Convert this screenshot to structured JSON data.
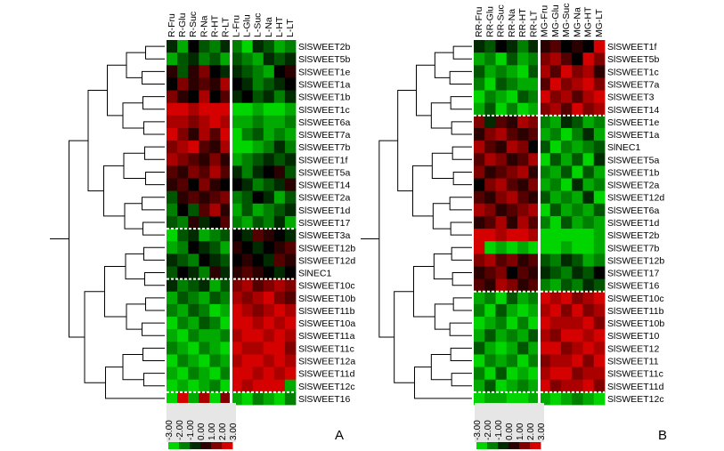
{
  "figure": {
    "panel_a_letter": "A",
    "panel_b_letter": "B"
  },
  "chart_data": [
    {
      "type": "heatmap",
      "panel": "A",
      "columns": [
        "R-Fru",
        "R-Glu",
        "R-Suc",
        "R-Na",
        "R-HT",
        "R-LT",
        "L-Fru",
        "L-Glu",
        "L-Suc",
        "L-Na",
        "L-HT",
        "L-LT"
      ],
      "rows": [
        "SlSWEET2b",
        "SlSWEET5b",
        "SlSWEET1e",
        "SlSWEET1a",
        "SlSWEET1b",
        "SlSWEET1c",
        "SlSWEET6a",
        "SlSWEET7a",
        "SlSWEET7b",
        "SlSWEET1f",
        "SlSWEET5a",
        "SlSWEET14",
        "SlSWEET2a",
        "SlSWEET1d",
        "SlSWEET17",
        "SlSWEET3a",
        "SlSWEET12b",
        "SlSWEET12d",
        "SlNEC1",
        "SlSWEET10c",
        "SlSWEET10b",
        "SlSWEET11b",
        "SlSWEET10a",
        "SlSWEET11a",
        "SlSWEET11c",
        "SlSWEET12a",
        "SlSWEET11d",
        "SlSWEET12c",
        "SlSWEET16"
      ],
      "values": [
        [
          -0.5,
          -2.0,
          0.0,
          -1.0,
          -1.5,
          -0.5,
          -1.5,
          -2.5,
          -0.5,
          -1.0,
          -2.0,
          -1.5
        ],
        [
          -2.0,
          -1.0,
          -0.5,
          -1.5,
          -1.0,
          -2.0,
          -1.0,
          -1.5,
          -2.0,
          -0.5,
          -1.0,
          -0.5
        ],
        [
          0.5,
          -1.0,
          0.5,
          1.5,
          0.0,
          -0.5,
          -0.5,
          -1.0,
          -1.5,
          -2.0,
          0.0,
          0.5
        ],
        [
          0.0,
          1.5,
          0.5,
          1.0,
          0.5,
          2.0,
          0.0,
          -0.5,
          -1.5,
          -1.0,
          -0.5,
          0.0
        ],
        [
          1.5,
          0.5,
          0.0,
          2.0,
          0.0,
          1.0,
          -0.5,
          0.0,
          -1.0,
          -0.5,
          -1.5,
          -0.5
        ],
        [
          2.5,
          2.5,
          2.0,
          2.5,
          2.5,
          2.5,
          -2.5,
          -2.5,
          -2.0,
          -2.5,
          -2.5,
          -2.0
        ],
        [
          2.0,
          2.0,
          1.5,
          2.0,
          2.5,
          2.0,
          -2.0,
          -2.0,
          -1.5,
          -2.0,
          -2.0,
          -1.5
        ],
        [
          2.5,
          1.5,
          0.5,
          2.0,
          1.0,
          2.5,
          -2.5,
          -1.5,
          -1.0,
          -2.0,
          -1.5,
          -2.0
        ],
        [
          1.5,
          2.0,
          2.5,
          1.0,
          0.5,
          2.0,
          -2.5,
          -2.5,
          -2.0,
          -1.5,
          -0.5,
          -1.5
        ],
        [
          2.0,
          1.5,
          1.0,
          0.5,
          1.5,
          0.5,
          -2.0,
          -1.5,
          -1.0,
          -0.5,
          -1.0,
          -0.5
        ],
        [
          1.0,
          0.5,
          1.5,
          1.0,
          2.0,
          1.0,
          -0.5,
          -1.5,
          -0.5,
          0.0,
          0.5,
          -1.0
        ],
        [
          0.5,
          1.0,
          0.0,
          1.5,
          0.5,
          0.0,
          0.0,
          -0.5,
          -1.5,
          -1.0,
          -0.5,
          0.5
        ],
        [
          -1.0,
          0.5,
          1.0,
          0.5,
          1.0,
          1.5,
          -1.5,
          -1.0,
          0.0,
          -0.5,
          -2.0,
          -1.0
        ],
        [
          -1.5,
          0.0,
          -1.0,
          1.0,
          2.0,
          0.5,
          -2.0,
          -1.0,
          -2.0,
          -1.5,
          -1.0,
          -0.5
        ],
        [
          -1.0,
          -1.5,
          0.5,
          -0.5,
          0.0,
          1.0,
          -1.5,
          -2.0,
          -1.0,
          -1.5,
          -0.5,
          -2.0
        ],
        [
          -2.5,
          -1.0,
          -0.5,
          -2.0,
          -1.5,
          -1.0,
          0.0,
          -0.5,
          1.0,
          0.5,
          0.0,
          -0.5
        ],
        [
          -2.0,
          -1.5,
          0.0,
          -0.5,
          -1.0,
          -2.0,
          0.5,
          0.0,
          -0.5,
          0.0,
          0.5,
          1.0
        ],
        [
          -0.5,
          -1.0,
          -1.5,
          0.0,
          -0.5,
          -1.0,
          0.0,
          0.5,
          0.0,
          -0.5,
          1.0,
          0.5
        ],
        [
          -1.0,
          0.0,
          -0.5,
          -1.5,
          0.5,
          -0.5,
          0.5,
          1.0,
          0.5,
          0.0,
          -0.5,
          0.0
        ],
        [
          -0.5,
          -1.5,
          -1.0,
          -0.5,
          -2.0,
          -1.0,
          1.5,
          2.0,
          1.0,
          1.5,
          2.0,
          1.5
        ],
        [
          -2.0,
          -1.0,
          -1.5,
          -2.0,
          -1.0,
          -1.5,
          2.0,
          1.5,
          2.0,
          2.5,
          1.5,
          1.0
        ],
        [
          -1.5,
          -2.0,
          -1.0,
          -1.5,
          -2.5,
          -2.0,
          2.5,
          2.0,
          1.5,
          2.0,
          2.5,
          2.0
        ],
        [
          -2.5,
          -1.5,
          -2.0,
          -1.0,
          -1.5,
          -2.5,
          2.5,
          2.5,
          2.0,
          2.5,
          2.0,
          2.5
        ],
        [
          -2.0,
          -2.5,
          -1.5,
          -2.0,
          -2.0,
          -1.5,
          2.0,
          2.5,
          2.5,
          2.0,
          2.5,
          2.0
        ],
        [
          -1.5,
          -2.0,
          -2.5,
          -1.5,
          -2.0,
          -2.5,
          2.5,
          2.0,
          2.0,
          2.5,
          2.5,
          1.5
        ],
        [
          -2.5,
          -1.5,
          -2.0,
          -2.5,
          -1.5,
          -2.0,
          2.0,
          2.5,
          2.5,
          2.0,
          2.5,
          2.0
        ],
        [
          -2.0,
          -2.5,
          -1.5,
          -2.0,
          -2.5,
          -1.5,
          2.5,
          2.5,
          2.0,
          2.5,
          2.0,
          2.5
        ],
        [
          -2.5,
          -2.0,
          -2.5,
          -2.0,
          -1.5,
          -2.5,
          2.5,
          2.0,
          2.5,
          2.5,
          2.5,
          -2.0
        ],
        [
          -2.5,
          2.5,
          -2.0,
          2.0,
          -2.5,
          1.5,
          -2.0,
          -2.5,
          -1.5,
          -2.0,
          -2.5,
          -1.5
        ]
      ],
      "vmin": -3.0,
      "vmax": 3.0,
      "colors": {
        "low": "#00ff00",
        "mid": "#000000",
        "high": "#ff0000"
      },
      "separator_after_rows": [
        15,
        19,
        28
      ],
      "separator_after_columns": [
        6
      ],
      "legend_ticks": [
        "-3.00",
        "-2.00",
        "-1.00",
        "0.00",
        "1.00",
        "2.00",
        "3.00"
      ]
    },
    {
      "type": "heatmap",
      "panel": "B",
      "columns": [
        "RR-Fru",
        "RR-Glu",
        "RR-Suc",
        "RR-Na",
        "RR-HT",
        "RR-LT",
        "MG-Fru",
        "MG-Glu",
        "MG-Suc",
        "MG-Na",
        "MG-HT",
        "MG-LT"
      ],
      "rows": [
        "SlSWEET1f",
        "SlSWEET5b",
        "SlSWEET1c",
        "SlSWEET7a",
        "SlSWEET3",
        "SlSWEET14",
        "SlSWEET1e",
        "SlSWEET1a",
        "SlNEC1",
        "SlSWEET5a",
        "SlSWEET1b",
        "SlSWEET2a",
        "SlSWEET12d",
        "SlSWEET6a",
        "SlSWEET1d",
        "SlSWEET2b",
        "SlSWEET7b",
        "SlSWEET12b",
        "SlSWEET17",
        "SlSWEET16",
        "SlSWEET10c",
        "SlSWEET11b",
        "SlSWEET10b",
        "SlSWEET10",
        "SlSWEET12",
        "SlSWEET11",
        "SlSWEET11c",
        "SlSWEET11d",
        "SlSWEET12c"
      ],
      "values": [
        [
          -0.5,
          -1.0,
          0.0,
          -0.5,
          -1.5,
          -0.5,
          0.5,
          1.0,
          0.0,
          0.5,
          0.0,
          2.5
        ],
        [
          -2.0,
          -1.5,
          -2.5,
          -1.0,
          -2.0,
          -1.5,
          1.5,
          2.0,
          1.0,
          0.0,
          2.5,
          1.5
        ],
        [
          -1.0,
          -2.0,
          -1.5,
          -2.0,
          -2.5,
          -1.0,
          2.0,
          1.0,
          2.5,
          1.5,
          2.0,
          0.5
        ],
        [
          -1.5,
          -2.5,
          -1.0,
          -1.5,
          -2.0,
          -2.0,
          1.0,
          2.5,
          1.5,
          2.0,
          2.5,
          1.5
        ],
        [
          -2.5,
          -1.5,
          -2.0,
          -2.5,
          -1.0,
          -1.5,
          2.5,
          1.5,
          2.0,
          1.0,
          2.0,
          2.5
        ],
        [
          -2.0,
          -1.0,
          -2.5,
          -1.5,
          -2.5,
          -2.0,
          1.5,
          2.0,
          1.0,
          2.5,
          1.5,
          2.0
        ],
        [
          1.5,
          -0.5,
          1.0,
          0.5,
          2.0,
          1.5,
          -1.5,
          -2.0,
          -0.5,
          -1.0,
          -2.0,
          -1.5
        ],
        [
          0.5,
          1.5,
          2.0,
          1.0,
          0.5,
          1.0,
          -2.0,
          -1.5,
          -2.5,
          -1.5,
          -0.5,
          -2.0
        ],
        [
          2.0,
          1.0,
          0.5,
          2.0,
          1.5,
          0.0,
          -1.0,
          -2.5,
          -1.5,
          -2.0,
          -1.5,
          -1.0
        ],
        [
          1.0,
          2.0,
          1.5,
          0.5,
          1.0,
          2.0,
          -2.5,
          -1.0,
          -2.0,
          -1.0,
          -2.5,
          -0.5
        ],
        [
          1.5,
          0.5,
          1.0,
          1.5,
          2.0,
          0.5,
          -1.5,
          -2.0,
          -1.0,
          -2.5,
          -1.0,
          -2.0
        ],
        [
          0.0,
          1.5,
          2.0,
          1.0,
          0.5,
          1.5,
          -2.0,
          -1.5,
          -2.5,
          -0.5,
          -2.0,
          -1.5
        ],
        [
          1.0,
          0.5,
          1.5,
          2.0,
          1.0,
          0.5,
          -1.0,
          -2.0,
          -1.5,
          -2.0,
          -0.5,
          -2.5
        ],
        [
          2.0,
          1.5,
          0.5,
          1.0,
          1.5,
          2.0,
          -2.5,
          -1.0,
          -2.0,
          -1.5,
          -2.0,
          -1.0
        ],
        [
          0.5,
          1.0,
          2.0,
          0.5,
          2.0,
          1.0,
          -1.5,
          -2.5,
          -1.0,
          -2.0,
          -1.5,
          -2.0
        ],
        [
          2.5,
          2.5,
          2.0,
          2.5,
          2.5,
          2.0,
          -2.5,
          -2.5,
          -2.5,
          -2.5,
          -2.5,
          -2.0
        ],
        [
          2.5,
          -2.5,
          -2.0,
          -2.5,
          -2.0,
          -2.5,
          -2.5,
          -2.5,
          -2.0,
          -2.5,
          -2.5,
          -2.0
        ],
        [
          1.5,
          2.0,
          1.0,
          1.5,
          0.5,
          1.0,
          -1.0,
          -1.5,
          -0.5,
          -1.0,
          -2.0,
          -1.5
        ],
        [
          0.5,
          1.0,
          1.5,
          0.0,
          1.0,
          0.5,
          -0.5,
          -1.0,
          -1.5,
          -0.5,
          -1.0,
          0.0
        ],
        [
          1.0,
          0.5,
          2.0,
          1.5,
          0.5,
          1.0,
          -1.5,
          -2.0,
          -1.0,
          -1.5,
          -0.5,
          -1.0
        ],
        [
          -2.0,
          -1.5,
          -2.5,
          -1.0,
          -2.0,
          -1.5,
          2.5,
          2.0,
          2.5,
          1.5,
          2.0,
          2.5
        ],
        [
          -1.5,
          -2.5,
          -1.0,
          -2.0,
          -2.5,
          -2.0,
          2.0,
          2.5,
          1.5,
          2.5,
          1.5,
          2.0
        ],
        [
          -2.5,
          -2.0,
          -1.5,
          -2.5,
          -1.5,
          -2.5,
          2.5,
          2.0,
          2.0,
          2.0,
          2.5,
          1.5
        ],
        [
          -2.0,
          -1.0,
          -2.0,
          -1.5,
          -2.0,
          -1.0,
          2.0,
          1.5,
          2.5,
          2.5,
          2.0,
          2.5
        ],
        [
          -1.0,
          -2.0,
          -2.5,
          -2.0,
          -1.0,
          -2.0,
          2.5,
          2.5,
          1.5,
          2.0,
          2.5,
          2.0
        ],
        [
          -2.5,
          -1.5,
          -2.0,
          -1.5,
          -2.5,
          -1.5,
          1.5,
          2.0,
          2.0,
          2.5,
          1.5,
          2.5
        ],
        [
          -1.5,
          -2.5,
          -1.0,
          -2.5,
          -2.0,
          -2.5,
          2.0,
          2.5,
          2.5,
          1.5,
          2.0,
          2.0
        ],
        [
          -2.0,
          -1.0,
          -2.5,
          -2.0,
          -1.5,
          -2.0,
          2.5,
          1.5,
          2.0,
          2.0,
          2.5,
          1.5
        ],
        [
          -2.5,
          -2.0,
          -2.0,
          -2.5,
          -2.5,
          -2.0,
          -2.0,
          -2.5,
          -2.0,
          -1.5,
          -2.0,
          -2.5
        ]
      ],
      "vmin": -3.0,
      "vmax": 3.0,
      "colors": {
        "low": "#00ff00",
        "mid": "#000000",
        "high": "#ff0000"
      },
      "separator_after_rows": [
        6,
        20,
        28
      ],
      "separator_after_columns": [
        6
      ],
      "legend_ticks": [
        "-3.00",
        "-2.00",
        "-1.00",
        "0.00",
        "1.00",
        "2.00",
        "3.00"
      ]
    }
  ]
}
